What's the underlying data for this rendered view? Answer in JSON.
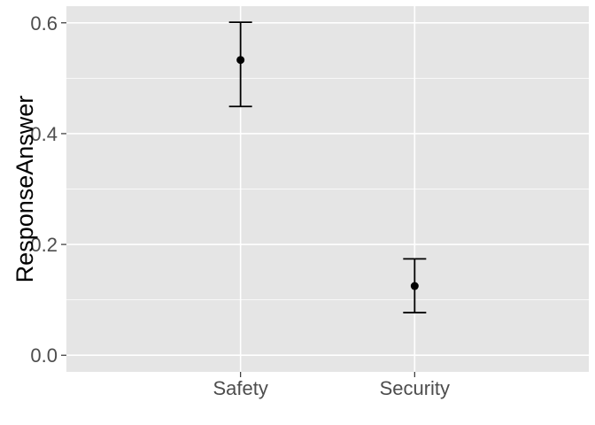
{
  "chart_data": {
    "type": "pointrange",
    "title": "",
    "xlabel": "",
    "ylabel": "ResponseAnswer",
    "categories": [
      "Safety",
      "Security"
    ],
    "values": [
      0.533,
      0.125
    ],
    "lower": [
      0.449,
      0.077
    ],
    "upper": [
      0.601,
      0.174
    ],
    "ylim": [
      -0.03,
      0.63
    ],
    "yticks": [
      0.0,
      0.2,
      0.4,
      0.6
    ],
    "ytick_labels": [
      "0.0",
      "0.2",
      "0.4",
      "0.6"
    ],
    "grid": true,
    "colors": {
      "panel": "#e5e5e5",
      "grid": "#ffffff",
      "mark": "#000000",
      "tick_text": "#4d4d4d"
    }
  }
}
